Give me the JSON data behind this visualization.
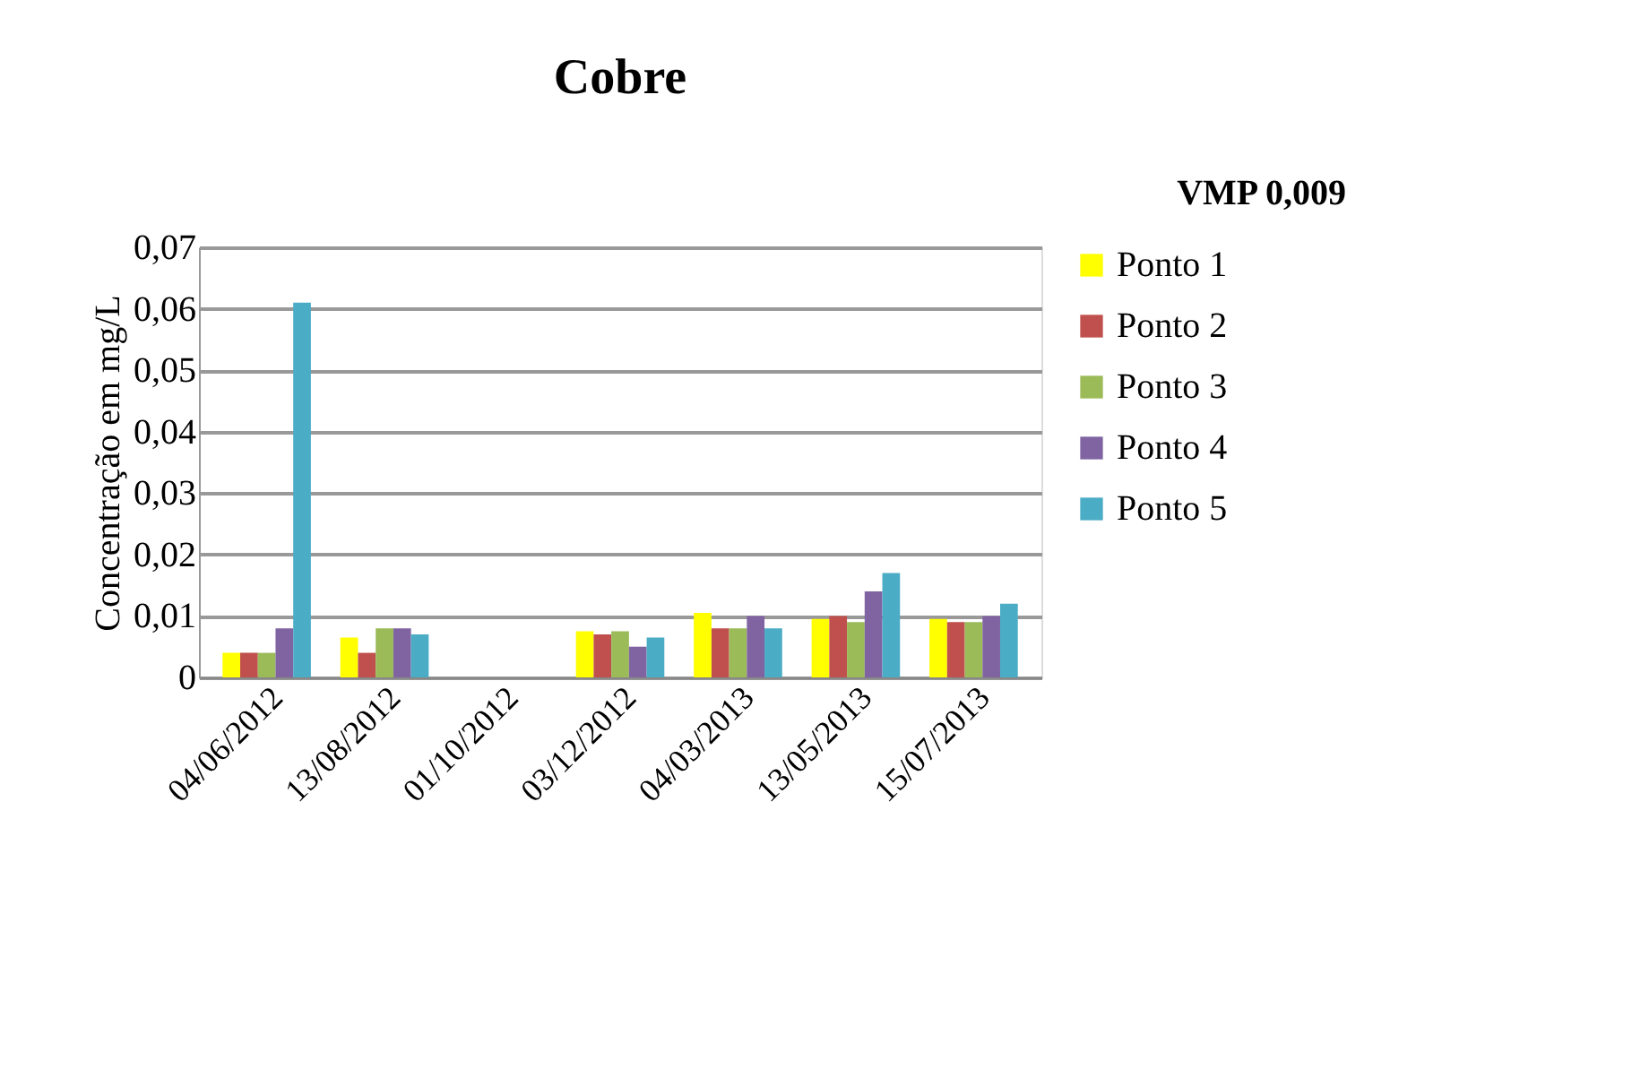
{
  "chart_data": {
    "type": "bar",
    "title": "Cobre",
    "ylabel": "Concentração em mg/L",
    "annotations": [
      "VMP 0,009"
    ],
    "categories": [
      "04/06/2012",
      "13/08/2012",
      "01/10/2012",
      "03/12/2012",
      "04/03/2013",
      "13/05/2013",
      "15/07/2013"
    ],
    "series": [
      {
        "name": "Ponto 1",
        "color": "#ffff00",
        "values": [
          0.004,
          0.0065,
          null,
          0.0075,
          0.0105,
          0.0095,
          0.0095
        ]
      },
      {
        "name": "Ponto 2",
        "color": "#c0504d",
        "values": [
          0.004,
          0.004,
          null,
          0.007,
          0.008,
          0.01,
          0.009
        ]
      },
      {
        "name": "Ponto 3",
        "color": "#9bbb59",
        "values": [
          0.004,
          0.008,
          null,
          0.0075,
          0.008,
          0.009,
          0.009
        ]
      },
      {
        "name": "Ponto 4",
        "color": "#8064a2",
        "values": [
          0.008,
          0.008,
          null,
          0.005,
          0.01,
          0.014,
          0.01
        ]
      },
      {
        "name": "Ponto 5",
        "color": "#4bacc6",
        "values": [
          0.061,
          0.007,
          null,
          0.0065,
          0.008,
          0.017,
          0.012
        ]
      }
    ],
    "ylim": [
      0,
      0.07
    ],
    "yticks": [
      0,
      {
        "value": 0.01,
        "label": "0,01"
      },
      {
        "value": 0.02,
        "label": "0,02"
      },
      {
        "value": 0.03,
        "label": "0,03"
      },
      {
        "value": 0.04,
        "label": "0,04"
      },
      {
        "value": 0.05,
        "label": "0,05"
      },
      {
        "value": 0.06,
        "label": "0,06"
      },
      {
        "value": 0.07,
        "label": "0,07"
      }
    ],
    "grid": "y",
    "legend": "right"
  }
}
